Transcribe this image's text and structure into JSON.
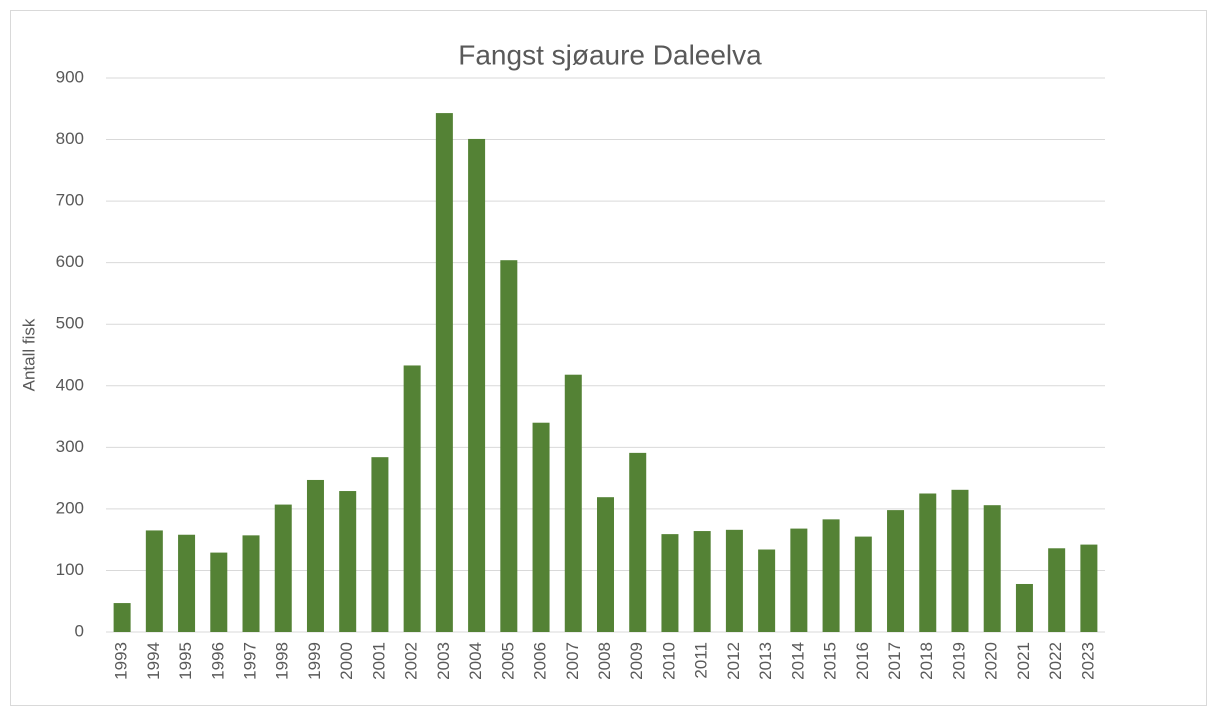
{
  "chart_data": {
    "type": "bar",
    "title": "Fangst sjøaure Daleelva",
    "y_label": "Antall fisk",
    "categories": [
      "1993",
      "1994",
      "1995",
      "1996",
      "1997",
      "1998",
      "1999",
      "2000",
      "2001",
      "2002",
      "2003",
      "2004",
      "2005",
      "2006",
      "2007",
      "2008",
      "2009",
      "2010",
      "2011",
      "2012",
      "2013",
      "2014",
      "2015",
      "2016",
      "2017",
      "2018",
      "2019",
      "2020",
      "2021",
      "2022",
      "2023"
    ],
    "values": [
      47,
      165,
      158,
      129,
      157,
      207,
      247,
      229,
      284,
      433,
      843,
      801,
      604,
      340,
      418,
      219,
      291,
      159,
      164,
      166,
      134,
      168,
      183,
      155,
      198,
      225,
      231,
      206,
      78,
      136,
      142
    ],
    "color": "#548235",
    "ylim": [
      0,
      900
    ],
    "yticks": [
      0,
      100,
      200,
      300,
      400,
      500,
      600,
      700,
      800,
      900
    ],
    "grid": true
  }
}
